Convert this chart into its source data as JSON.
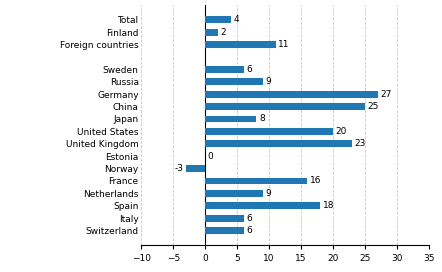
{
  "categories": [
    "Total",
    "Finland",
    "Foreign countries",
    "",
    "Sweden",
    "Russia",
    "Germany",
    "China",
    "Japan",
    "United States",
    "United Kingdom",
    "Estonia",
    "Norway",
    "France",
    "Netherlands",
    "Spain",
    "Italy",
    "Switzerland"
  ],
  "values": [
    4,
    2,
    11,
    null,
    6,
    9,
    27,
    25,
    8,
    20,
    23,
    0,
    -3,
    16,
    9,
    18,
    6,
    6
  ],
  "bar_color": "#1F78B4",
  "xlim": [
    -10,
    35
  ],
  "xticks": [
    -10,
    -5,
    0,
    5,
    10,
    15,
    20,
    25,
    30,
    35
  ],
  "label_fontsize": 6.5,
  "value_fontsize": 6.5,
  "bar_height": 0.55,
  "grid_color": "#c8c8c8",
  "grid_lw": 0.6
}
